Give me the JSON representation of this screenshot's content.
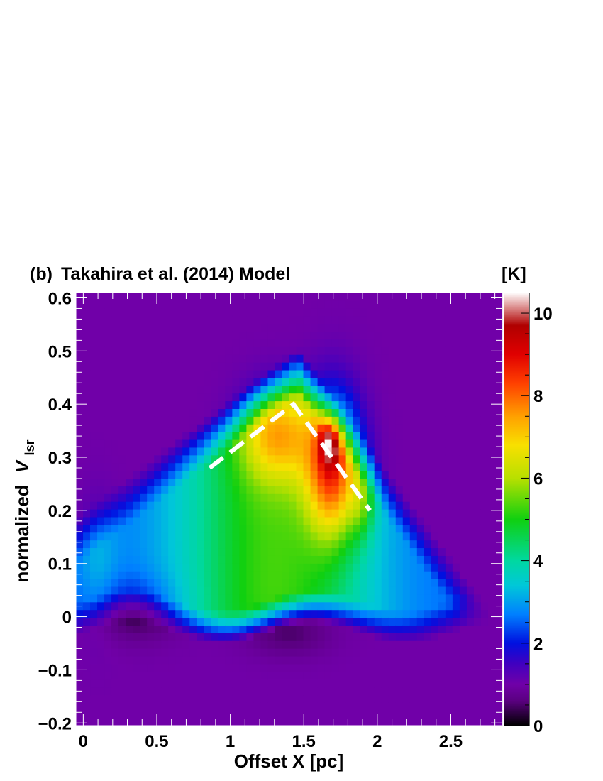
{
  "chart_data": {
    "type": "heatmap",
    "panel_label": "(b)",
    "title": "Takahira et al. (2014) Model",
    "xlabel": "Offset X [pc]",
    "ylabel_prefix": "normalized",
    "ylabel_var": "V",
    "ylabel_sub": "lsr",
    "colorbar_label": "[K]",
    "xlim": [
      -0.05,
      2.85
    ],
    "ylim": [
      -0.205,
      0.61
    ],
    "zlim": [
      0,
      10.5
    ],
    "x_ticks": [
      {
        "value": 0,
        "label": "0"
      },
      {
        "value": 0.5,
        "label": "0.5"
      },
      {
        "value": 1,
        "label": "1"
      },
      {
        "value": 1.5,
        "label": "1.5"
      },
      {
        "value": 2,
        "label": "2"
      },
      {
        "value": 2.5,
        "label": "2.5"
      }
    ],
    "y_ticks": [
      {
        "value": -0.2,
        "label": "−0.2"
      },
      {
        "value": -0.1,
        "label": "−0.1"
      },
      {
        "value": 0,
        "label": "0"
      },
      {
        "value": 0.1,
        "label": "0.1"
      },
      {
        "value": 0.2,
        "label": "0.2"
      },
      {
        "value": 0.3,
        "label": "0.3"
      },
      {
        "value": 0.4,
        "label": "0.4"
      },
      {
        "value": 0.5,
        "label": "0.5"
      },
      {
        "value": 0.6,
        "label": "0.6"
      }
    ],
    "colorbar_ticks": [
      {
        "value": 0,
        "label": "0"
      },
      {
        "value": 2,
        "label": "2"
      },
      {
        "value": 4,
        "label": "4"
      },
      {
        "value": 6,
        "label": "6"
      },
      {
        "value": 8,
        "label": "8"
      },
      {
        "value": 10,
        "label": "10"
      }
    ],
    "colorscale": [
      [
        0.0,
        "#000000"
      ],
      [
        0.6,
        "#5a0080"
      ],
      [
        1.0,
        "#7000a8"
      ],
      [
        1.5,
        "#4000c0"
      ],
      [
        2.0,
        "#0010e0"
      ],
      [
        2.7,
        "#0080ff"
      ],
      [
        3.4,
        "#00c8d8"
      ],
      [
        4.0,
        "#00d8a0"
      ],
      [
        5.0,
        "#10d010"
      ],
      [
        6.0,
        "#b8e000"
      ],
      [
        6.8,
        "#f8e000"
      ],
      [
        7.5,
        "#ffa000"
      ],
      [
        8.3,
        "#ff4000"
      ],
      [
        9.0,
        "#e00000"
      ],
      [
        9.7,
        "#b00000"
      ],
      [
        10.5,
        "#ffffff"
      ]
    ],
    "dashed_line": [
      {
        "x": 0.86,
        "y": 0.28
      },
      {
        "x": 1.43,
        "y": 0.4
      },
      {
        "x": 1.95,
        "y": 0.2
      }
    ]
  }
}
